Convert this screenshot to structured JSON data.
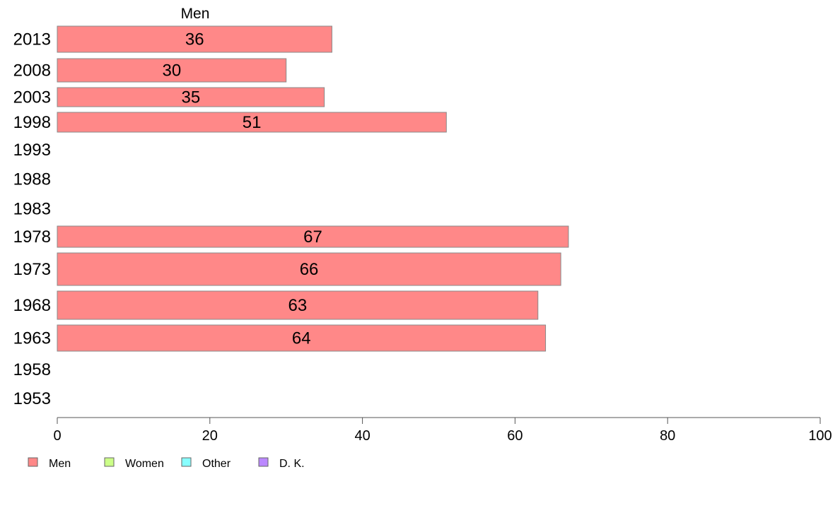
{
  "chart_data": {
    "type": "bar",
    "orientation": "horizontal",
    "panel_title": "Men",
    "categories": [
      "2013",
      "2008",
      "2003",
      "1998",
      "1993",
      "1988",
      "1983",
      "1978",
      "1973",
      "1968",
      "1963",
      "1958",
      "1953"
    ],
    "series": [
      {
        "name": "Men",
        "color": "#ff8888",
        "values": [
          36,
          30,
          35,
          51,
          null,
          null,
          null,
          67,
          66,
          63,
          64,
          null,
          null
        ]
      }
    ],
    "xlim": [
      0,
      100
    ],
    "xticks": [
      0,
      20,
      40,
      60,
      80,
      100
    ],
    "grid": false,
    "legend_position": "bottom-left",
    "legend": [
      {
        "label": "Men",
        "color": "#ff8888"
      },
      {
        "label": "Women",
        "color": "#ccff88"
      },
      {
        "label": "Other",
        "color": "#88ffff"
      },
      {
        "label": "D. K.",
        "color": "#bb88ff"
      }
    ]
  }
}
